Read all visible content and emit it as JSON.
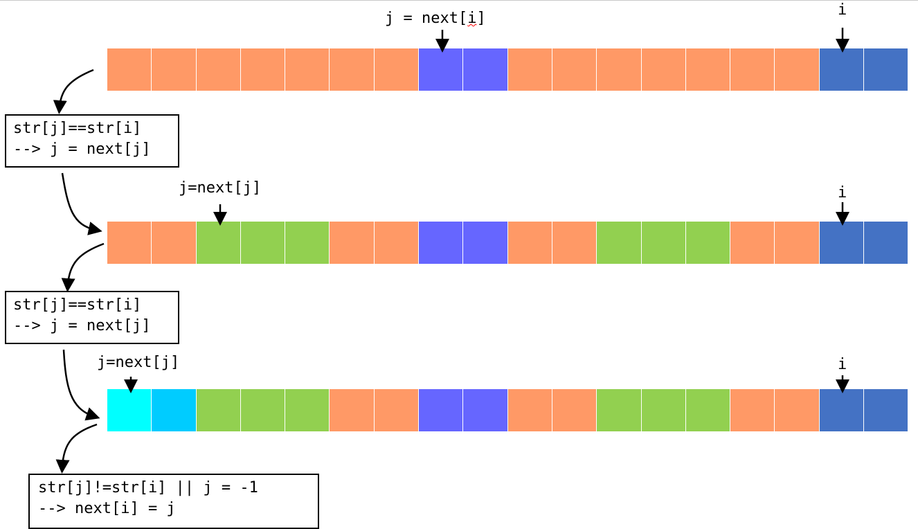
{
  "colors": {
    "O": "#FF9966",
    "P": "#6666FF",
    "B": "#4472C4",
    "G": "#92D050",
    "C": "#00FFFF",
    "D": "#00CCFF"
  },
  "rows": [
    [
      "O",
      "O",
      "O",
      "O",
      "O",
      "O",
      "O",
      "P",
      "P",
      "O",
      "O",
      "O",
      "O",
      "O",
      "O",
      "O",
      "B",
      "B"
    ],
    [
      "O",
      "O",
      "G",
      "G",
      "G",
      "O",
      "O",
      "P",
      "P",
      "O",
      "O",
      "G",
      "G",
      "G",
      "O",
      "O",
      "B",
      "B"
    ],
    [
      "C",
      "D",
      "G",
      "G",
      "G",
      "O",
      "O",
      "P",
      "P",
      "O",
      "O",
      "G",
      "G",
      "G",
      "O",
      "O",
      "B",
      "B"
    ]
  ],
  "labels": {
    "row1_j_prefix": "j = next[",
    "row1_j_i": "i",
    "row1_j_suffix": "]",
    "row1_i": "i",
    "row2_j": "j=next[j]",
    "row2_i": "i",
    "row3_j": "j=next[j]",
    "row3_i": "i"
  },
  "boxes": {
    "box1_line1": "str[j]==str[i]",
    "box1_line2": "--> j = next[j]",
    "box2_line1": "str[j]==str[i]",
    "box2_line2": "--> j = next[j]",
    "box3_line1": "str[j]!=str[i] || j = -1",
    "box3_line2": "--> next[i] = j"
  }
}
